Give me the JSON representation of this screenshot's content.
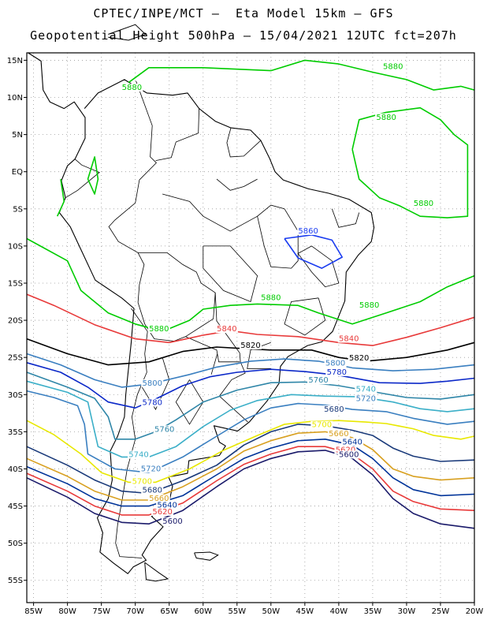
{
  "title_line1": "CPTEC/INPE/MCT –  Eta Model 15km – GFS",
  "title_line2": "Geopotential Height 500hPa – 15/04/2021 12UTC fct=207h",
  "lat_labels": [
    "15N",
    "10N",
    "5N",
    "EQ",
    "5S",
    "10S",
    "15S",
    "20S",
    "25S",
    "30S",
    "35S",
    "40S",
    "45S",
    "50S",
    "55S"
  ],
  "lon_labels": [
    "85W",
    "80W",
    "75W",
    "70W",
    "65W",
    "60W",
    "55W",
    "50W",
    "45W",
    "40W",
    "35W",
    "30W",
    "25W",
    "20W"
  ],
  "map_extent": {
    "lon": [
      -86,
      -20
    ],
    "lat": [
      -58,
      16
    ]
  },
  "grid": "dotted",
  "contour_colors": {
    "5880": "#00cc00",
    "5860": "#1a3cf0",
    "5840": "#e83a3a",
    "5820": "#000000",
    "5800": "#3a7fc0",
    "5780": "#0b28c8",
    "5760": "#2f86a8",
    "5740": "#3bafc8",
    "5720": "#3a7fc0",
    "5700": "#e8e800",
    "5680": "#1a3a7a",
    "5660": "#d8a020",
    "5640": "#003399",
    "5620": "#e83a3a",
    "5600": "#1a1a6a"
  },
  "contour_labels": [
    {
      "text": "5880",
      "lon": -70.5,
      "lat": 11.0,
      "color": "#00cc00"
    },
    {
      "text": "5880",
      "lon": -32.0,
      "lat": 13.8,
      "color": "#00cc00"
    },
    {
      "text": "5880",
      "lon": -33.0,
      "lat": 7.0,
      "color": "#00cc00"
    },
    {
      "text": "5880",
      "lon": -27.5,
      "lat": -4.6,
      "color": "#00cc00"
    },
    {
      "text": "5860",
      "lon": -44.5,
      "lat": -8.3,
      "color": "#1a3cf0"
    },
    {
      "text": "5880",
      "lon": -50.0,
      "lat": -17.3,
      "color": "#00cc00"
    },
    {
      "text": "5880",
      "lon": -35.5,
      "lat": -18.3,
      "color": "#00cc00"
    },
    {
      "text": "5880",
      "lon": -66.5,
      "lat": -21.5,
      "color": "#00cc00"
    },
    {
      "text": "5840",
      "lon": -56.5,
      "lat": -21.5,
      "color": "#e83a3a"
    },
    {
      "text": "5840",
      "lon": -38.5,
      "lat": -22.8,
      "color": "#e83a3a"
    },
    {
      "text": "5820",
      "lon": -53.0,
      "lat": -23.7,
      "color": "#000000"
    },
    {
      "text": "5820",
      "lon": -37.0,
      "lat": -25.4,
      "color": "#000000"
    },
    {
      "text": "5800",
      "lon": -40.5,
      "lat": -26.1,
      "color": "#3a7fc0"
    },
    {
      "text": "5780",
      "lon": -40.3,
      "lat": -27.3,
      "color": "#0b28c8"
    },
    {
      "text": "5760",
      "lon": -43.0,
      "lat": -28.4,
      "color": "#2f86a8"
    },
    {
      "text": "5740",
      "lon": -36.0,
      "lat": -29.6,
      "color": "#3bafc8"
    },
    {
      "text": "5720",
      "lon": -36.0,
      "lat": -30.9,
      "color": "#3a7fc0"
    },
    {
      "text": "5680",
      "lon": -40.7,
      "lat": -32.3,
      "color": "#1a3a7a"
    },
    {
      "text": "5700",
      "lon": -42.5,
      "lat": -34.4,
      "color": "#e8e800"
    },
    {
      "text": "5660",
      "lon": -40.0,
      "lat": -35.6,
      "color": "#d8a020"
    },
    {
      "text": "5640",
      "lon": -38.0,
      "lat": -36.7,
      "color": "#003399"
    },
    {
      "text": "5620",
      "lon": -39.0,
      "lat": -37.8,
      "color": "#e83a3a"
    },
    {
      "text": "5600",
      "lon": -38.5,
      "lat": -38.4,
      "color": "#1a1a6a"
    },
    {
      "text": "5800",
      "lon": -67.5,
      "lat": -28.8,
      "color": "#3a7fc0"
    },
    {
      "text": "5780",
      "lon": -67.5,
      "lat": -31.4,
      "color": "#0b28c8"
    },
    {
      "text": "5760",
      "lon": -65.7,
      "lat": -35.0,
      "color": "#2f86a8"
    },
    {
      "text": "5740",
      "lon": -69.5,
      "lat": -38.4,
      "color": "#3bafc8"
    },
    {
      "text": "5720",
      "lon": -67.7,
      "lat": -40.3,
      "color": "#3a7fc0"
    },
    {
      "text": "5700",
      "lon": -69.0,
      "lat": -42.0,
      "color": "#e8e800"
    },
    {
      "text": "5680",
      "lon": -67.5,
      "lat": -43.2,
      "color": "#1a3a7a"
    },
    {
      "text": "5660",
      "lon": -66.5,
      "lat": -44.3,
      "color": "#d8a020"
    },
    {
      "text": "5640",
      "lon": -65.3,
      "lat": -45.2,
      "color": "#003399"
    },
    {
      "text": "5620",
      "lon": -66.0,
      "lat": -46.1,
      "color": "#e83a3a"
    },
    {
      "text": "5600",
      "lon": -64.5,
      "lat": -47.4,
      "color": "#1a1a6a"
    }
  ]
}
